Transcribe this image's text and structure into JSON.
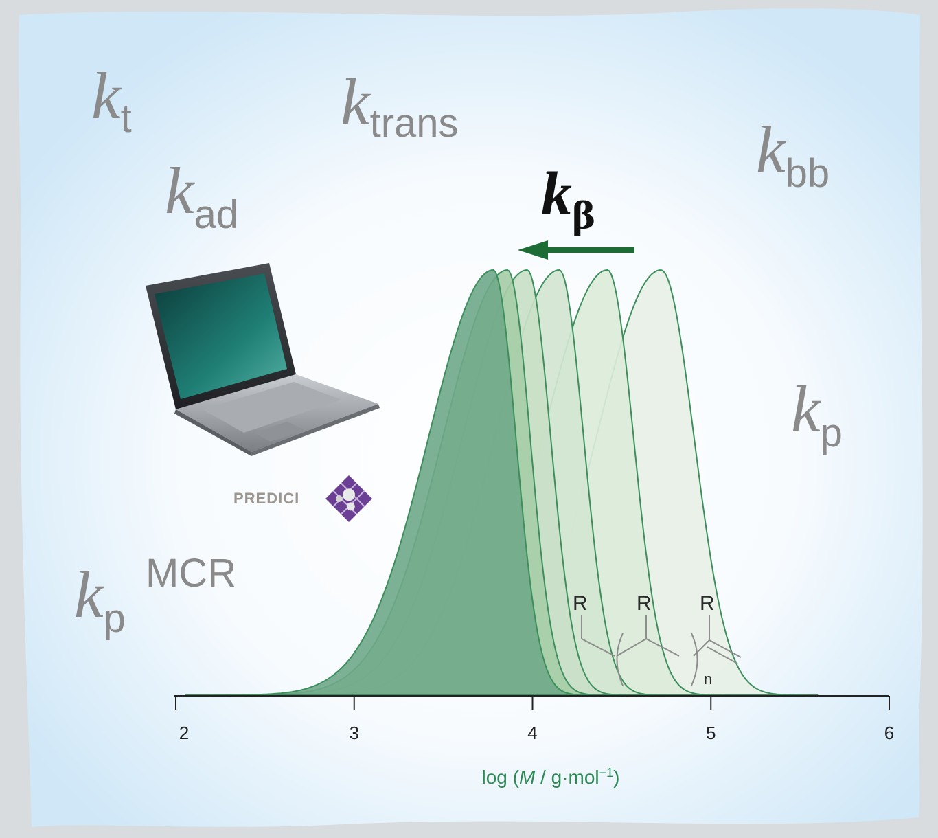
{
  "labels": {
    "kt": {
      "base": "k",
      "sub": "t"
    },
    "ktrans": {
      "base": "k",
      "sub": "trans"
    },
    "kbb": {
      "base": "k",
      "sub": "bb"
    },
    "kad": {
      "base": "k",
      "sub": "ad"
    },
    "kbeta": {
      "base": "k",
      "sub": "β"
    },
    "kp_right": {
      "base": "k",
      "sub": "p"
    },
    "kp_mcr": {
      "base": "k",
      "sub": "p",
      "sup": "MCR"
    }
  },
  "software": {
    "name": "PREDICI",
    "icon": "laptop-icon",
    "logo": "predici-logo-icon"
  },
  "structure": {
    "substituents": [
      "R",
      "R",
      "R"
    ],
    "repeat_index": "n"
  },
  "colors": {
    "curve_stroke": "#3c8f5c",
    "arrow": "#1d6b35",
    "label_gray": "#8a8a8a",
    "background": "#e3f2fb"
  },
  "chart_data": {
    "type": "area",
    "title": "",
    "xlabel": "log (M / g·mol⁻¹)",
    "ylabel": "",
    "xlim": [
      2,
      6
    ],
    "ylim": [
      0,
      1
    ],
    "x_ticks": [
      "2",
      "3",
      "4",
      "5",
      "6"
    ],
    "grid": false,
    "legend": "none",
    "annotation": {
      "arrow": "points toward lower molecular mass",
      "label": "kβ"
    },
    "series": [
      {
        "peak_log_M": 4.72,
        "height": 1.0,
        "width_left": 0.55,
        "width_right": 0.38
      },
      {
        "peak_log_M": 4.42,
        "height": 1.0,
        "width_left": 0.55,
        "width_right": 0.3
      },
      {
        "peak_log_M": 4.15,
        "height": 1.0,
        "width_left": 0.55,
        "width_right": 0.28
      },
      {
        "peak_log_M": 3.97,
        "height": 1.0,
        "width_left": 0.55,
        "width_right": 0.27
      },
      {
        "peak_log_M": 3.86,
        "height": 1.0,
        "width_left": 0.55,
        "width_right": 0.26
      },
      {
        "peak_log_M": 3.78,
        "height": 1.0,
        "width_left": 0.55,
        "width_right": 0.26
      }
    ]
  }
}
